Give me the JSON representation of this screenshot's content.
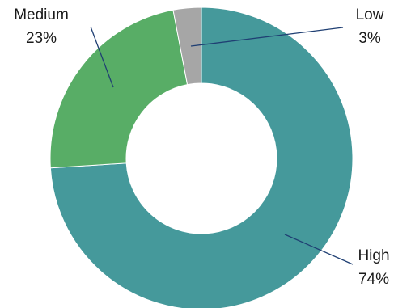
{
  "chart_data": {
    "type": "pie",
    "variant": "donut",
    "categories": [
      "High",
      "Medium",
      "Low"
    ],
    "values": [
      74,
      23,
      3
    ],
    "value_labels": [
      "74%",
      "23%",
      "3%"
    ],
    "colors": {
      "High": "#45999b",
      "Medium": "#58ad66",
      "Low": "#a6a6a6"
    },
    "start": "12 o'clock",
    "direction": "clockwise",
    "legend": "none",
    "leader_line_color": "#1f3f73"
  }
}
